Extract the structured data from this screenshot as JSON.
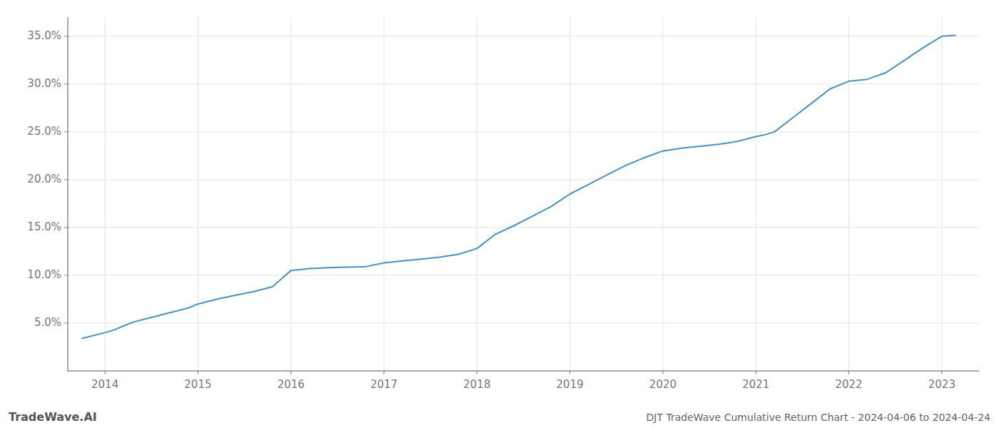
{
  "chart_data": {
    "type": "line",
    "title": "DJT TradeWave Cumulative Return Chart - 2024-04-06 to 2024-04-24",
    "annotations": [
      "TradeWave.AI"
    ],
    "x": [
      2013.75,
      2014.0,
      2014.1,
      2014.2,
      2014.3,
      2014.5,
      2014.7,
      2014.9,
      2015.0,
      2015.2,
      2015.4,
      2015.6,
      2015.8,
      2016.0,
      2016.2,
      2016.4,
      2016.6,
      2016.8,
      2017.0,
      2017.2,
      2017.4,
      2017.6,
      2017.8,
      2018.0,
      2018.2,
      2018.4,
      2018.6,
      2018.8,
      2019.0,
      2019.2,
      2019.4,
      2019.6,
      2019.8,
      2020.0,
      2020.2,
      2020.4,
      2020.6,
      2020.8,
      2021.0,
      2021.1,
      2021.2,
      2021.4,
      2021.6,
      2021.8,
      2022.0,
      2022.2,
      2022.4,
      2022.6,
      2022.8,
      2023.0,
      2023.15
    ],
    "values": [
      3.4,
      4.0,
      4.3,
      4.7,
      5.1,
      5.6,
      6.1,
      6.6,
      7.0,
      7.5,
      7.9,
      8.3,
      8.8,
      10.5,
      10.7,
      10.8,
      10.85,
      10.9,
      11.3,
      11.5,
      11.7,
      11.9,
      12.2,
      12.8,
      14.3,
      15.2,
      16.2,
      17.2,
      18.5,
      19.5,
      20.5,
      21.5,
      22.3,
      23.0,
      23.3,
      23.5,
      23.7,
      24.0,
      24.5,
      24.7,
      25.0,
      26.5,
      28.0,
      29.5,
      30.3,
      30.5,
      31.2,
      32.5,
      33.8,
      35.0,
      35.1
    ],
    "color": "#4a90c4",
    "xlim": [
      2013.6,
      2023.4
    ],
    "ylim": [
      0,
      37
    ],
    "xticks": [
      2014,
      2015,
      2016,
      2017,
      2018,
      2019,
      2020,
      2021,
      2022,
      2023
    ],
    "yticks": [
      {
        "value": 5.0,
        "label": "5.0%"
      },
      {
        "value": 10.0,
        "label": "10.0%"
      },
      {
        "value": 15.0,
        "label": "15.0%"
      },
      {
        "value": 20.0,
        "label": "20.0%"
      },
      {
        "value": 25.0,
        "label": "25.0%"
      },
      {
        "value": 30.0,
        "label": "30.0%"
      },
      {
        "value": 35.0,
        "label": "35.0%"
      }
    ],
    "grid": true
  }
}
